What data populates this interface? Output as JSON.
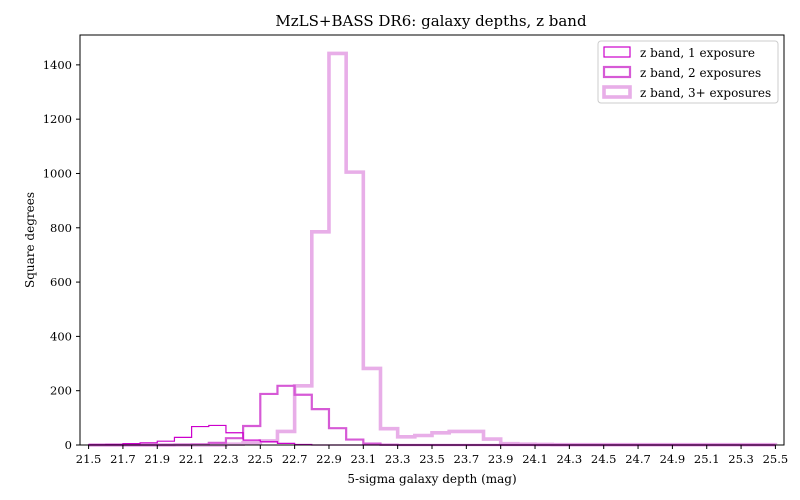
{
  "chart_data": {
    "type": "histogram",
    "title": "MzLS+BASS DR6: galaxy depths, z band",
    "xlabel": "5-sigma galaxy depth (mag)",
    "ylabel": "Square degrees",
    "xlim": [
      21.45,
      25.55
    ],
    "ylim": [
      0,
      1510
    ],
    "x_ticks": [
      "21.5",
      "21.7",
      "21.9",
      "22.1",
      "22.3",
      "22.5",
      "22.7",
      "22.9",
      "23.1",
      "23.3",
      "23.5",
      "23.7",
      "23.9",
      "24.1",
      "24.3",
      "24.5",
      "24.7",
      "24.9",
      "25.1",
      "25.3",
      "25.5"
    ],
    "y_ticks": [
      "0",
      "200",
      "400",
      "600",
      "800",
      "1000",
      "1200",
      "1400"
    ],
    "legend_position": "top-right",
    "bin_edges": [
      21.5,
      21.6,
      21.7,
      21.8,
      21.9,
      22.0,
      22.1,
      22.2,
      22.3,
      22.4,
      22.5,
      22.6,
      22.7,
      22.8,
      22.9,
      23.0,
      23.1,
      23.2,
      23.3,
      23.4,
      23.5,
      23.6,
      23.7,
      23.8,
      23.9,
      24.0,
      24.1,
      24.2,
      24.3,
      24.4,
      24.5,
      24.6,
      24.7,
      24.8,
      24.9,
      25.0,
      25.1,
      25.2,
      25.3,
      25.4,
      25.5
    ],
    "series": [
      {
        "name": "z band, 1 exposure",
        "color": "#cc00cc",
        "values": [
          1,
          2,
          5,
          8,
          14,
          28,
          68,
          72,
          45,
          18,
          12,
          6,
          2,
          0,
          0,
          0,
          0,
          0,
          0,
          0,
          0,
          0,
          0,
          0,
          0,
          0,
          0,
          0,
          0,
          0,
          0,
          0,
          0,
          0,
          0,
          0,
          0,
          0,
          0,
          0
        ]
      },
      {
        "name": "z band, 2 exposures",
        "color": "#d65ad6",
        "values": [
          0,
          0,
          0,
          0,
          0,
          1,
          2,
          8,
          25,
          70,
          188,
          218,
          185,
          132,
          62,
          20,
          5,
          1,
          0,
          0,
          0,
          0,
          0,
          0,
          0,
          0,
          0,
          0,
          0,
          0,
          0,
          0,
          0,
          0,
          0,
          0,
          0,
          0,
          0,
          0
        ]
      },
      {
        "name": "z band, 3+ exposures",
        "color": "#e8aee8",
        "values": [
          0,
          0,
          0,
          0,
          0,
          0,
          0,
          0,
          3,
          8,
          15,
          50,
          218,
          785,
          1442,
          1005,
          282,
          60,
          30,
          35,
          45,
          50,
          50,
          22,
          5,
          3,
          2,
          1,
          1,
          1,
          1,
          1,
          1,
          1,
          1,
          1,
          1,
          1,
          1,
          1
        ]
      }
    ]
  }
}
